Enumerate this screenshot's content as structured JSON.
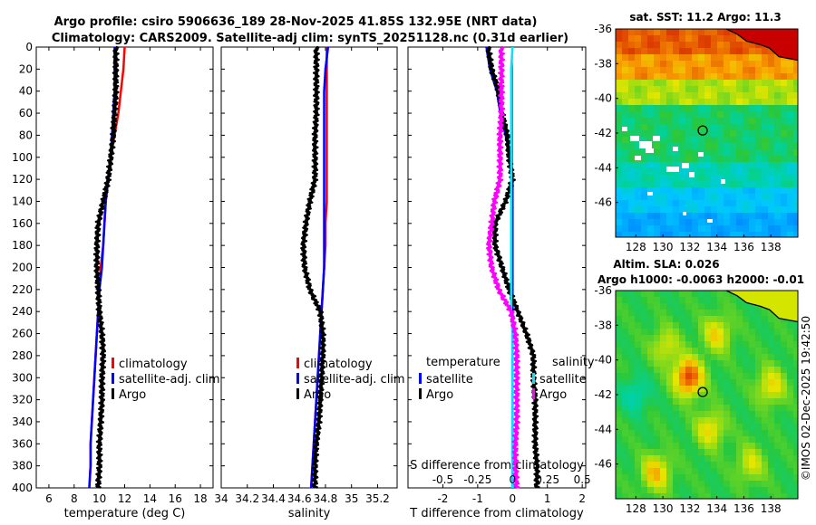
{
  "title": {
    "line1": "Argo profile: csiro 5906636_189 28-Nov-2025 41.85S 132.95E (NRT data)",
    "line2": "Climatology: CARS2009. Satellite-adj clim: synTS_20251128.nc (0.31d earlier)"
  },
  "credit": "©IMOS 02-Dec-2025 19:42:50",
  "colors": {
    "red": "#ff0000",
    "blue": "#0000ff",
    "black": "#000000",
    "cyan": "#00e5ff",
    "magenta": "#ff00ff"
  },
  "chart_data": [
    {
      "id": "temperature",
      "type": "line",
      "xlabel": "temperature (deg C)",
      "ylabel": "",
      "xlim": [
        5,
        19
      ],
      "ylim": [
        400,
        0
      ],
      "xticks": [
        6,
        8,
        10,
        12,
        14,
        16,
        18
      ],
      "xtick_labels": [
        "6",
        "8",
        "10",
        "12",
        "14",
        "16",
        "18"
      ],
      "yticks": [
        0,
        20,
        40,
        60,
        80,
        100,
        120,
        140,
        160,
        180,
        200,
        220,
        240,
        260,
        280,
        300,
        320,
        340,
        360,
        380,
        400
      ],
      "ytick_labels": [
        "0",
        "20",
        "40",
        "60",
        "80",
        "100",
        "120",
        "140",
        "160",
        "180",
        "200",
        "220",
        "240",
        "260",
        "280",
        "300",
        "320",
        "340",
        "360",
        "380",
        "400"
      ],
      "legend": {
        "position": "right",
        "items": [
          {
            "label": "climatology",
            "color": "#ff0000"
          },
          {
            "label": "satellite-adj. clim",
            "color": "#0000ff"
          },
          {
            "label": "Argo",
            "color": "#000000"
          }
        ]
      },
      "series": [
        {
          "name": "climatology",
          "color": "#ff0000",
          "x": [
            12.0,
            11.9,
            11.7,
            11.5,
            11.2,
            10.9,
            10.7,
            10.5,
            10.4,
            10.3,
            10.1,
            10.0,
            9.9,
            9.8,
            9.7,
            9.6,
            9.5,
            9.4,
            9.3,
            9.3,
            9.2
          ],
          "y": [
            0,
            20,
            40,
            60,
            80,
            100,
            120,
            140,
            160,
            180,
            200,
            220,
            240,
            260,
            280,
            300,
            320,
            340,
            360,
            380,
            400
          ]
        },
        {
          "name": "satellite-adj. clim",
          "color": "#0000ff",
          "x": [
            11.2,
            11.2,
            11.2,
            11.1,
            11.0,
            10.9,
            10.7,
            10.5,
            10.4,
            10.3,
            10.2,
            10.0,
            9.9,
            9.8,
            9.7,
            9.6,
            9.5,
            9.4,
            9.3,
            9.3,
            9.2
          ],
          "y": [
            0,
            20,
            40,
            60,
            80,
            100,
            120,
            140,
            160,
            180,
            200,
            220,
            240,
            260,
            280,
            300,
            320,
            340,
            360,
            380,
            400
          ]
        },
        {
          "name": "Argo",
          "color": "#000000",
          "x": [
            11.3,
            11.3,
            11.3,
            11.2,
            11.1,
            10.9,
            10.7,
            10.3,
            9.9,
            9.8,
            9.8,
            9.9,
            10.0,
            10.2,
            10.3,
            10.2,
            10.2,
            10.1,
            10.0,
            10.0,
            9.9
          ],
          "y": [
            0,
            20,
            40,
            60,
            80,
            100,
            120,
            140,
            160,
            180,
            200,
            220,
            240,
            260,
            280,
            300,
            320,
            340,
            360,
            380,
            400
          ]
        }
      ]
    },
    {
      "id": "salinity",
      "type": "line",
      "xlabel": "salinity",
      "ylabel": "",
      "xlim": [
        34,
        35.35
      ],
      "ylim": [
        400,
        0
      ],
      "xticks": [
        34,
        34.2,
        34.4,
        34.6,
        34.8,
        35,
        35.2
      ],
      "xtick_labels": [
        "34",
        "34.2",
        "34.4",
        "34.6",
        "34.8",
        "35",
        "35.2"
      ],
      "legend": {
        "position": "right",
        "items": [
          {
            "label": "climatology",
            "color": "#ff0000"
          },
          {
            "label": "satellite-adj. clim",
            "color": "#0000ff"
          },
          {
            "label": "Argo",
            "color": "#000000"
          }
        ]
      },
      "series": [
        {
          "name": "climatology",
          "color": "#ff0000",
          "x": [
            34.81,
            34.81,
            34.81,
            34.81,
            34.81,
            34.81,
            34.81,
            34.81,
            34.8,
            34.8,
            34.79,
            34.78,
            34.77,
            34.76,
            34.75,
            34.74,
            34.73,
            34.72,
            34.71,
            34.7,
            34.69
          ],
          "y": [
            0,
            20,
            40,
            60,
            80,
            100,
            120,
            140,
            160,
            180,
            200,
            220,
            240,
            260,
            280,
            300,
            320,
            340,
            360,
            380,
            400
          ]
        },
        {
          "name": "satellite-adj. clim",
          "color": "#0000ff",
          "x": [
            34.82,
            34.8,
            34.79,
            34.79,
            34.79,
            34.79,
            34.79,
            34.79,
            34.79,
            34.79,
            34.79,
            34.78,
            34.77,
            34.76,
            34.75,
            34.74,
            34.73,
            34.72,
            34.71,
            34.7,
            34.69
          ],
          "y": [
            0,
            20,
            40,
            60,
            80,
            100,
            120,
            140,
            160,
            180,
            200,
            220,
            240,
            260,
            280,
            300,
            320,
            340,
            360,
            380,
            400
          ]
        },
        {
          "name": "Argo",
          "color": "#000000",
          "x": [
            34.73,
            34.73,
            34.73,
            34.73,
            34.72,
            34.72,
            34.72,
            34.68,
            34.65,
            34.63,
            34.64,
            34.68,
            34.76,
            34.78,
            34.78,
            34.77,
            34.76,
            34.75,
            34.73,
            34.72,
            34.72
          ],
          "y": [
            0,
            20,
            40,
            60,
            80,
            100,
            120,
            140,
            160,
            180,
            200,
            220,
            240,
            260,
            280,
            300,
            320,
            340,
            360,
            380,
            400
          ]
        }
      ]
    },
    {
      "id": "differences",
      "type": "line",
      "xlabel": "T difference from climatology",
      "top_label": "S difference from climatology",
      "ylabel": "",
      "xlim": [
        -3,
        2.1
      ],
      "ylim": [
        400,
        0
      ],
      "xticks": [
        -2,
        -1,
        0,
        1,
        2
      ],
      "xtick_labels": [
        "-2",
        "-1",
        "0",
        "1",
        "2"
      ],
      "sticks": [
        -0.5,
        -0.25,
        0,
        0.25,
        0.5
      ],
      "stick_labels": [
        "-0.5",
        "-0.25",
        "0",
        "0.25",
        "0.5"
      ],
      "legend_temperature": {
        "title": "temperature",
        "items": [
          {
            "label": "satellite",
            "color": "#0000ff"
          },
          {
            "label": "Argo",
            "color": "#000000"
          }
        ]
      },
      "legend_salinity": {
        "title": "salinity",
        "items": [
          {
            "label": "satellite",
            "color": "#00e5ff"
          },
          {
            "label": "Argo",
            "color": "#ff00ff"
          }
        ]
      },
      "series": [
        {
          "name": "temperature satellite",
          "color": "#0000ff",
          "units": "degC",
          "x": [
            -0.75,
            -0.65,
            -0.45,
            -0.35,
            -0.2,
            -0.05,
            0.0,
            0.0,
            0.0,
            0.0,
            0.0,
            0.0,
            0.0,
            0.0,
            0.0,
            0.0,
            0.0,
            0.0,
            0.0,
            0.0,
            0.0
          ],
          "y": [
            0,
            20,
            40,
            60,
            80,
            100,
            120,
            140,
            160,
            180,
            200,
            220,
            240,
            260,
            280,
            300,
            320,
            340,
            360,
            380,
            400
          ]
        },
        {
          "name": "temperature Argo",
          "color": "#000000",
          "units": "degC",
          "x": [
            -0.7,
            -0.6,
            -0.4,
            -0.3,
            -0.15,
            -0.1,
            0.0,
            -0.2,
            -0.5,
            -0.5,
            -0.3,
            -0.1,
            0.15,
            0.4,
            0.6,
            0.6,
            0.65,
            0.65,
            0.65,
            0.7,
            0.7
          ],
          "y": [
            0,
            20,
            40,
            60,
            80,
            100,
            120,
            140,
            160,
            180,
            200,
            220,
            240,
            260,
            280,
            300,
            320,
            340,
            360,
            380,
            400
          ]
        },
        {
          "name": "salinity satellite",
          "color": "#00e5ff",
          "units": "psu",
          "x": [
            0.0,
            -0.01,
            -0.01,
            -0.01,
            -0.01,
            -0.01,
            -0.01,
            -0.01,
            -0.01,
            -0.01,
            -0.01,
            -0.01,
            -0.01,
            0.0,
            0.0,
            0.0,
            0.0,
            0.0,
            0.0,
            0.0,
            0.0
          ],
          "y": [
            0,
            20,
            40,
            60,
            80,
            100,
            120,
            140,
            160,
            180,
            200,
            220,
            240,
            260,
            280,
            300,
            320,
            340,
            360,
            380,
            400
          ]
        },
        {
          "name": "salinity Argo",
          "color": "#ff00ff",
          "units": "psu",
          "x": [
            -0.08,
            -0.08,
            -0.08,
            -0.08,
            -0.09,
            -0.09,
            -0.09,
            -0.13,
            -0.15,
            -0.17,
            -0.15,
            -0.1,
            -0.01,
            0.02,
            0.03,
            0.03,
            0.03,
            0.03,
            0.02,
            0.02,
            0.03
          ],
          "y": [
            0,
            20,
            40,
            60,
            80,
            100,
            120,
            140,
            160,
            180,
            200,
            220,
            240,
            260,
            280,
            300,
            320,
            340,
            360,
            380,
            400
          ]
        }
      ]
    },
    {
      "id": "sst_map",
      "type": "heatmap",
      "title": "sat. SST: 11.2 Argo: 11.3",
      "xlim": [
        126.5,
        140
      ],
      "ylim": [
        -48,
        -36
      ],
      "xticks": [
        128,
        130,
        132,
        134,
        136,
        138
      ],
      "xtick_labels": [
        "128",
        "130",
        "132",
        "134",
        "136",
        "138"
      ],
      "yticks": [
        -36,
        -38,
        -40,
        -42,
        -44,
        -46
      ],
      "ytick_labels": [
        "-36",
        "-38",
        "-40",
        "-42",
        "-44",
        "-46"
      ],
      "marker": {
        "lon": 132.95,
        "lat": -41.85
      },
      "value_range": [
        9,
        19
      ],
      "latitude_bands": [
        {
          "lat_from": -36,
          "lat_to": -37.5,
          "value": 18.5
        },
        {
          "lat_from": -37.5,
          "lat_to": -39,
          "value": 17.5
        },
        {
          "lat_from": -39,
          "lat_to": -40.5,
          "value": 15.5
        },
        {
          "lat_from": -40.5,
          "lat_to": -43.5,
          "value": 13.5
        },
        {
          "lat_from": -43.5,
          "lat_to": -45,
          "value": 12.5
        },
        {
          "lat_from": -45,
          "lat_to": -46.5,
          "value": 11.2
        },
        {
          "lat_from": -46.5,
          "lat_to": -48,
          "value": 10.3
        }
      ]
    },
    {
      "id": "sla_map",
      "type": "heatmap",
      "title": "Altim. SLA: 0.026",
      "subtitle": "Argo h1000: -0.0063 h2000: -0.01",
      "xlim": [
        126.5,
        140
      ],
      "ylim": [
        -48,
        -36
      ],
      "xticks": [
        128,
        130,
        132,
        134,
        136,
        138
      ],
      "xtick_labels": [
        "128",
        "130",
        "132",
        "134",
        "136",
        "138"
      ],
      "yticks": [
        -36,
        -38,
        -40,
        -42,
        -44,
        -46
      ],
      "ytick_labels": [
        "-36",
        "-38",
        "-40",
        "-42",
        "-44",
        "-46"
      ],
      "marker": {
        "lon": 132.95,
        "lat": -41.85
      },
      "value_range": [
        -0.2,
        0.2
      ],
      "background_value": 0.0,
      "anomalies": [
        {
          "lon": 131.9,
          "lat": -41.0,
          "value": 0.2
        },
        {
          "lon": 134.0,
          "lat": -38.5,
          "value": 0.1
        },
        {
          "lon": 130.2,
          "lat": -39.2,
          "value": 0.08
        },
        {
          "lon": 138.0,
          "lat": -41.5,
          "value": 0.1
        },
        {
          "lon": 133.5,
          "lat": -44.0,
          "value": 0.1
        },
        {
          "lon": 129.5,
          "lat": -46.5,
          "value": 0.12
        },
        {
          "lon": 136.5,
          "lat": -46.0,
          "value": 0.08
        },
        {
          "lon": 128.0,
          "lat": -42.0,
          "value": -0.06
        }
      ]
    }
  ]
}
